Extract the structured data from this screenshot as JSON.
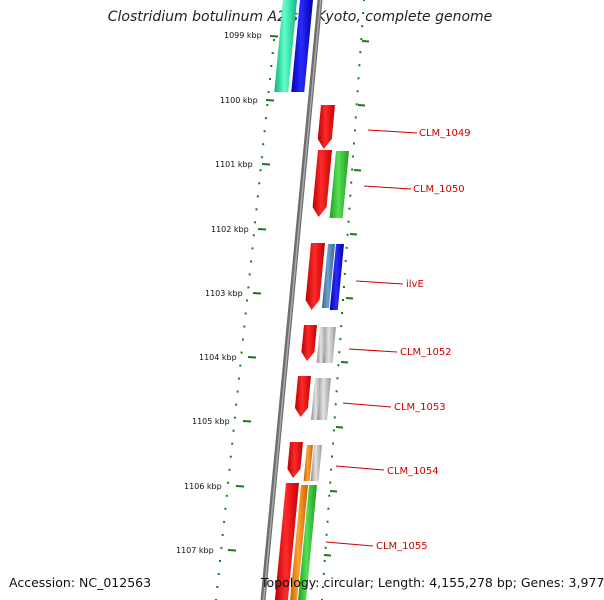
{
  "title": "Clostridium botulinum A2 str. Kyoto, complete genome",
  "footer": {
    "accession": "Accession: NC_012563",
    "topology": "Topology: circular; Length: 4,155,278 bp; Genes: 3,977"
  },
  "ruler_labels": [
    "1099 kbp",
    "1100 kbp",
    "1101 kbp",
    "1102 kbp",
    "1103 kbp",
    "1104 kbp",
    "1105 kbp",
    "1106 kbp",
    "1107 kbp"
  ],
  "gene_labels": [
    "CLM_1049",
    "CLM_1050",
    "ilvE",
    "CLM_1052",
    "CLM_1053",
    "CLM_1054",
    "CLM_1055"
  ],
  "colors": {
    "backbone": "#808080",
    "ruler_ticks": "#1a7a1a",
    "label_text": "#cc0000",
    "gene_forward": "#ff0000",
    "feature_green": "#33cc33",
    "feature_blue": "#0000ff",
    "feature_steelblue": "#4682b4",
    "feature_gray": "#bbbbbb",
    "feature_orange": "#ff8800",
    "feature_teal": "#22ddaa"
  }
}
